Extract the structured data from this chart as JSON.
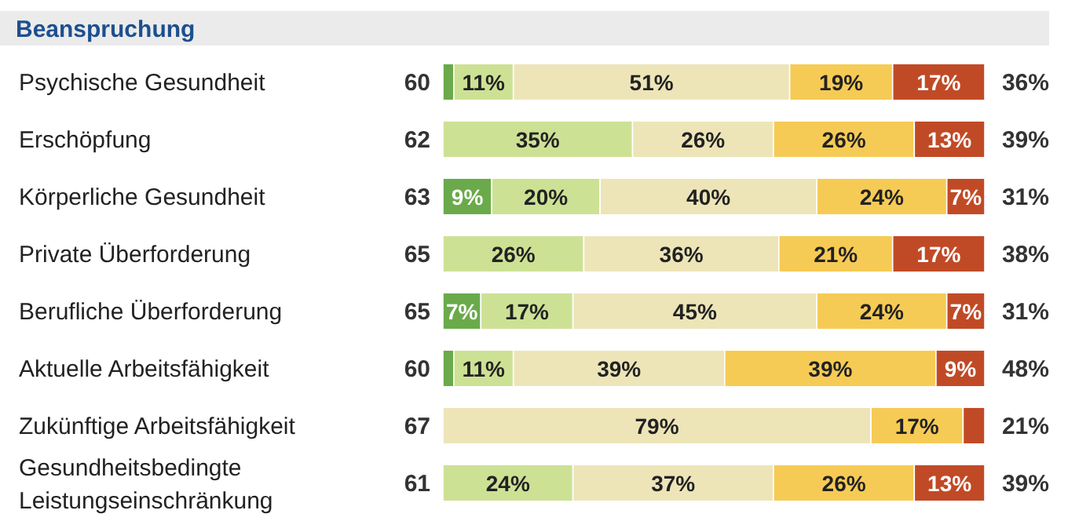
{
  "chart_data": {
    "type": "bar",
    "orientation": "horizontal",
    "stacked": true,
    "title": "Beanspruchung",
    "xlim": [
      0,
      100
    ],
    "data_labels": false,
    "categories": [
      "Psychische Gesundheit",
      "Erschöpfung",
      "Körperliche Gesundheit",
      "Private Überforderung",
      "Berufliche Überforderung",
      "Aktuelle Arbeitsfähigkeit",
      "Zukünftige Arbeitsfähigkeit",
      "Gesundheitsbedingte Leistungseinschränkung"
    ],
    "series": [
      {
        "color": "#6aaa4a",
        "values": [
          2,
          0,
          9,
          0,
          7,
          2,
          0,
          0
        ],
        "value_labels": [
          null,
          null,
          "9%",
          null,
          "7%",
          null,
          null,
          null
        ]
      },
      {
        "color": "#cde195",
        "values": [
          11,
          35,
          20,
          26,
          17,
          11,
          0,
          24
        ],
        "value_labels": [
          "11%",
          "35%",
          "20%",
          "26%",
          "17%",
          "11%",
          null,
          "24%"
        ]
      },
      {
        "color": "#ede5b8",
        "values": [
          51,
          26,
          40,
          36,
          45,
          39,
          79,
          37
        ],
        "value_labels": [
          "51%",
          "26%",
          "40%",
          "36%",
          "45%",
          "39%",
          "79%",
          "37%"
        ]
      },
      {
        "color": "#f6cb55",
        "values": [
          19,
          26,
          24,
          21,
          24,
          39,
          17,
          26
        ],
        "value_labels": [
          "19%",
          "26%",
          "24%",
          "21%",
          "24%",
          "39%",
          "17%",
          "26%"
        ]
      },
      {
        "color": "#c14a26",
        "values": [
          17,
          13,
          7,
          17,
          7,
          9,
          4,
          13
        ],
        "value_labels": [
          "17%",
          "13%",
          "7%",
          "17%",
          "7%",
          "9%",
          null,
          "13%"
        ]
      }
    ],
    "annotations": [
      "60",
      "62",
      "63",
      "65",
      "65",
      "60",
      "67",
      "61",
      "36%",
      "39%",
      "31%",
      "38%",
      "31%",
      "48%",
      "21%",
      "39%"
    ]
  }
}
